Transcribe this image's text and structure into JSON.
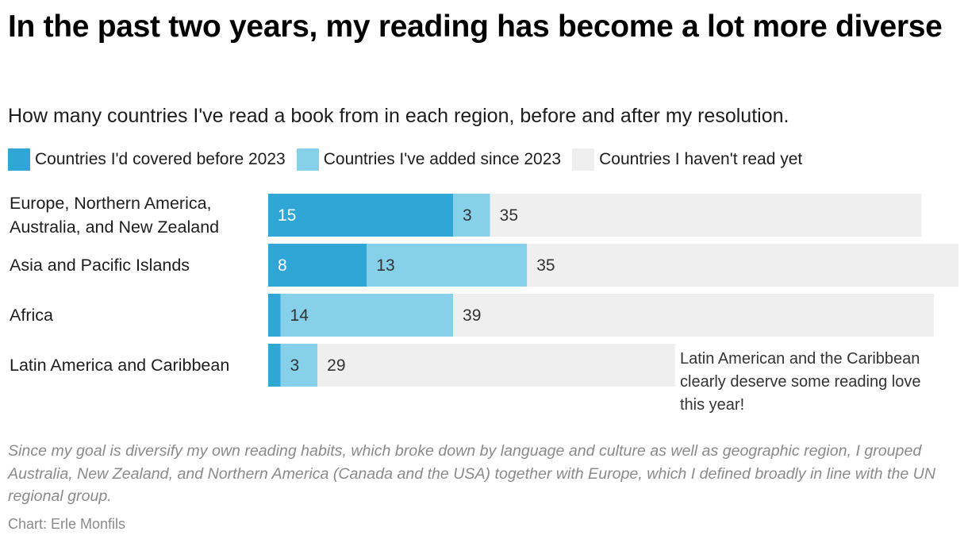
{
  "chart_data": {
    "type": "bar",
    "orientation": "horizontal",
    "stacked": true,
    "title": "In the past two years, my reading has become a lot more diverse",
    "subtitle": "How many countries I've read a book from in each region, before and after my resolution.",
    "categories": [
      "Europe, Northern America, Australia, and New Zealand",
      "Asia and Pacific Islands",
      "Africa",
      "Latin America and Caribbean"
    ],
    "category_lines": [
      [
        "Europe, Northern America,",
        "Australia, and New Zealand"
      ],
      [
        "Asia and Pacific Islands"
      ],
      [
        "Africa"
      ],
      [
        "Latin America and Caribbean"
      ]
    ],
    "series": [
      {
        "name": "Countries I'd covered before 2023",
        "color": "#2fa6d6",
        "label_color": "#ffffff",
        "values": [
          15,
          8,
          1,
          1
        ],
        "labels": [
          "15",
          "8",
          "",
          ""
        ]
      },
      {
        "name": "Countries I've added since 2023",
        "color": "#86d0ea",
        "label_color": "#333333",
        "values": [
          3,
          13,
          14,
          3
        ],
        "labels": [
          "3",
          "13",
          "14",
          "3"
        ]
      },
      {
        "name": "Countries I haven't read yet",
        "color": "#efefef",
        "label_color": "#333333",
        "values": [
          35,
          35,
          39,
          29
        ],
        "labels": [
          "35",
          "35",
          "39",
          "29"
        ]
      }
    ],
    "xlim": [
      0,
      56
    ],
    "grid": false,
    "legend": "top-left",
    "annotation": {
      "text": "Latin American and the Caribbean\nclearly deserve some reading love\nthis year!",
      "category": "Latin America and Caribbean"
    },
    "notes": "Since my goal is diversify my own reading habits, which broke down by language and culture as well as geographic region, I grouped Australia, New Zealand, and Northern America (Canada and the USA) together with Europe, which I defined broadly in line with the UN regional group.",
    "source": "Chart: Erle Monfils"
  }
}
